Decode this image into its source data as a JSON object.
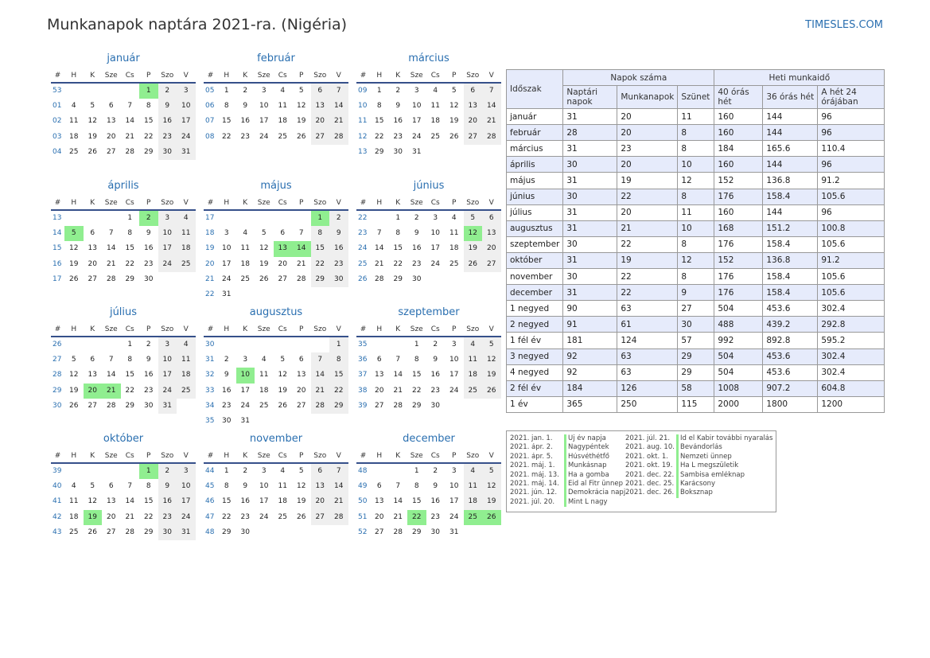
{
  "header": {
    "title": "Munkanapok naptára 2021-ra. (Nigéria)",
    "site": "TIMESLES.COM"
  },
  "day_headers": [
    "#",
    "H",
    "K",
    "Sze",
    "Cs",
    "P",
    "Szo",
    "V"
  ],
  "months": [
    {
      "name": "január",
      "weeks": [
        {
          "wn": "53",
          "days": [
            "",
            "",
            "",
            "",
            "1",
            "2",
            "3"
          ]
        },
        {
          "wn": "01",
          "days": [
            "4",
            "5",
            "6",
            "7",
            "8",
            "9",
            "10"
          ]
        },
        {
          "wn": "02",
          "days": [
            "11",
            "12",
            "13",
            "14",
            "15",
            "16",
            "17"
          ]
        },
        {
          "wn": "03",
          "days": [
            "18",
            "19",
            "20",
            "21",
            "22",
            "23",
            "24"
          ]
        },
        {
          "wn": "04",
          "days": [
            "25",
            "26",
            "27",
            "28",
            "29",
            "30",
            "31"
          ]
        }
      ],
      "holidays": [
        "1"
      ]
    },
    {
      "name": "február",
      "weeks": [
        {
          "wn": "05",
          "days": [
            "1",
            "2",
            "3",
            "4",
            "5",
            "6",
            "7"
          ]
        },
        {
          "wn": "06",
          "days": [
            "8",
            "9",
            "10",
            "11",
            "12",
            "13",
            "14"
          ]
        },
        {
          "wn": "07",
          "days": [
            "15",
            "16",
            "17",
            "18",
            "19",
            "20",
            "21"
          ]
        },
        {
          "wn": "08",
          "days": [
            "22",
            "23",
            "24",
            "25",
            "26",
            "27",
            "28"
          ]
        }
      ],
      "holidays": []
    },
    {
      "name": "március",
      "weeks": [
        {
          "wn": "09",
          "days": [
            "1",
            "2",
            "3",
            "4",
            "5",
            "6",
            "7"
          ]
        },
        {
          "wn": "10",
          "days": [
            "8",
            "9",
            "10",
            "11",
            "12",
            "13",
            "14"
          ]
        },
        {
          "wn": "11",
          "days": [
            "15",
            "16",
            "17",
            "18",
            "19",
            "20",
            "21"
          ]
        },
        {
          "wn": "12",
          "days": [
            "22",
            "23",
            "24",
            "25",
            "26",
            "27",
            "28"
          ]
        },
        {
          "wn": "13",
          "days": [
            "29",
            "30",
            "31",
            "",
            "",
            "",
            ""
          ]
        }
      ],
      "holidays": []
    },
    {
      "name": "április",
      "weeks": [
        {
          "wn": "13",
          "days": [
            "",
            "",
            "",
            "1",
            "2",
            "3",
            "4"
          ]
        },
        {
          "wn": "14",
          "days": [
            "5",
            "6",
            "7",
            "8",
            "9",
            "10",
            "11"
          ]
        },
        {
          "wn": "15",
          "days": [
            "12",
            "13",
            "14",
            "15",
            "16",
            "17",
            "18"
          ]
        },
        {
          "wn": "16",
          "days": [
            "19",
            "20",
            "21",
            "22",
            "23",
            "24",
            "25"
          ]
        },
        {
          "wn": "17",
          "days": [
            "26",
            "27",
            "28",
            "29",
            "30",
            "",
            ""
          ]
        }
      ],
      "holidays": [
        "2",
        "5"
      ]
    },
    {
      "name": "május",
      "weeks": [
        {
          "wn": "17",
          "days": [
            "",
            "",
            "",
            "",
            "",
            "1",
            "2"
          ]
        },
        {
          "wn": "18",
          "days": [
            "3",
            "4",
            "5",
            "6",
            "7",
            "8",
            "9"
          ]
        },
        {
          "wn": "19",
          "days": [
            "10",
            "11",
            "12",
            "13",
            "14",
            "15",
            "16"
          ]
        },
        {
          "wn": "20",
          "days": [
            "17",
            "18",
            "19",
            "20",
            "21",
            "22",
            "23"
          ]
        },
        {
          "wn": "21",
          "days": [
            "24",
            "25",
            "26",
            "27",
            "28",
            "29",
            "30"
          ]
        },
        {
          "wn": "22",
          "days": [
            "31",
            "",
            "",
            "",
            "",
            "",
            ""
          ]
        }
      ],
      "holidays": [
        "1",
        "13",
        "14"
      ]
    },
    {
      "name": "június",
      "weeks": [
        {
          "wn": "22",
          "days": [
            "",
            "1",
            "2",
            "3",
            "4",
            "5",
            "6"
          ]
        },
        {
          "wn": "23",
          "days": [
            "7",
            "8",
            "9",
            "10",
            "11",
            "12",
            "13"
          ]
        },
        {
          "wn": "24",
          "days": [
            "14",
            "15",
            "16",
            "17",
            "18",
            "19",
            "20"
          ]
        },
        {
          "wn": "25",
          "days": [
            "21",
            "22",
            "23",
            "24",
            "25",
            "26",
            "27"
          ]
        },
        {
          "wn": "26",
          "days": [
            "28",
            "29",
            "30",
            "",
            "",
            "",
            ""
          ]
        }
      ],
      "holidays": [
        "12"
      ]
    },
    {
      "name": "július",
      "weeks": [
        {
          "wn": "26",
          "days": [
            "",
            "",
            "",
            "1",
            "2",
            "3",
            "4"
          ]
        },
        {
          "wn": "27",
          "days": [
            "5",
            "6",
            "7",
            "8",
            "9",
            "10",
            "11"
          ]
        },
        {
          "wn": "28",
          "days": [
            "12",
            "13",
            "14",
            "15",
            "16",
            "17",
            "18"
          ]
        },
        {
          "wn": "29",
          "days": [
            "19",
            "20",
            "21",
            "22",
            "23",
            "24",
            "25"
          ]
        },
        {
          "wn": "30",
          "days": [
            "26",
            "27",
            "28",
            "29",
            "30",
            "31",
            ""
          ]
        }
      ],
      "holidays": [
        "20",
        "21"
      ]
    },
    {
      "name": "augusztus",
      "weeks": [
        {
          "wn": "30",
          "days": [
            "",
            "",
            "",
            "",
            "",
            "",
            "1"
          ]
        },
        {
          "wn": "31",
          "days": [
            "2",
            "3",
            "4",
            "5",
            "6",
            "7",
            "8"
          ]
        },
        {
          "wn": "32",
          "days": [
            "9",
            "10",
            "11",
            "12",
            "13",
            "14",
            "15"
          ]
        },
        {
          "wn": "33",
          "days": [
            "16",
            "17",
            "18",
            "19",
            "20",
            "21",
            "22"
          ]
        },
        {
          "wn": "34",
          "days": [
            "23",
            "24",
            "25",
            "26",
            "27",
            "28",
            "29"
          ]
        },
        {
          "wn": "35",
          "days": [
            "30",
            "31",
            "",
            "",
            "",
            "",
            ""
          ]
        }
      ],
      "holidays": [
        "10"
      ]
    },
    {
      "name": "szeptember",
      "weeks": [
        {
          "wn": "35",
          "days": [
            "",
            "",
            "1",
            "2",
            "3",
            "4",
            "5"
          ]
        },
        {
          "wn": "36",
          "days": [
            "6",
            "7",
            "8",
            "9",
            "10",
            "11",
            "12"
          ]
        },
        {
          "wn": "37",
          "days": [
            "13",
            "14",
            "15",
            "16",
            "17",
            "18",
            "19"
          ]
        },
        {
          "wn": "38",
          "days": [
            "20",
            "21",
            "22",
            "23",
            "24",
            "25",
            "26"
          ]
        },
        {
          "wn": "39",
          "days": [
            "27",
            "28",
            "29",
            "30",
            "",
            "",
            ""
          ]
        }
      ],
      "holidays": []
    },
    {
      "name": "október",
      "weeks": [
        {
          "wn": "39",
          "days": [
            "",
            "",
            "",
            "",
            "1",
            "2",
            "3"
          ]
        },
        {
          "wn": "40",
          "days": [
            "4",
            "5",
            "6",
            "7",
            "8",
            "9",
            "10"
          ]
        },
        {
          "wn": "41",
          "days": [
            "11",
            "12",
            "13",
            "14",
            "15",
            "16",
            "17"
          ]
        },
        {
          "wn": "42",
          "days": [
            "18",
            "19",
            "20",
            "21",
            "22",
            "23",
            "24"
          ]
        },
        {
          "wn": "43",
          "days": [
            "25",
            "26",
            "27",
            "28",
            "29",
            "30",
            "31"
          ]
        }
      ],
      "holidays": [
        "1",
        "19"
      ]
    },
    {
      "name": "november",
      "weeks": [
        {
          "wn": "44",
          "days": [
            "1",
            "2",
            "3",
            "4",
            "5",
            "6",
            "7"
          ]
        },
        {
          "wn": "45",
          "days": [
            "8",
            "9",
            "10",
            "11",
            "12",
            "13",
            "14"
          ]
        },
        {
          "wn": "46",
          "days": [
            "15",
            "16",
            "17",
            "18",
            "19",
            "20",
            "21"
          ]
        },
        {
          "wn": "47",
          "days": [
            "22",
            "23",
            "24",
            "25",
            "26",
            "27",
            "28"
          ]
        },
        {
          "wn": "48",
          "days": [
            "29",
            "30",
            "",
            "",
            "",
            "",
            ""
          ]
        }
      ],
      "holidays": []
    },
    {
      "name": "december",
      "weeks": [
        {
          "wn": "48",
          "days": [
            "",
            "",
            "1",
            "2",
            "3",
            "4",
            "5"
          ]
        },
        {
          "wn": "49",
          "days": [
            "6",
            "7",
            "8",
            "9",
            "10",
            "11",
            "12"
          ]
        },
        {
          "wn": "50",
          "days": [
            "13",
            "14",
            "15",
            "16",
            "17",
            "18",
            "19"
          ]
        },
        {
          "wn": "51",
          "days": [
            "20",
            "21",
            "22",
            "23",
            "24",
            "25",
            "26"
          ]
        },
        {
          "wn": "52",
          "days": [
            "27",
            "28",
            "29",
            "30",
            "31",
            "",
            ""
          ]
        }
      ],
      "holidays": [
        "22",
        "25",
        "26"
      ]
    }
  ],
  "stats": {
    "period_label": "Időszak",
    "group_days": "Napok száma",
    "group_hours": "Heti munkaidő",
    "col_calendar": "Naptári napok",
    "col_work": "Munkanapok",
    "col_holiday": "Szünet",
    "col_40": "40 órás hét",
    "col_36": "36 órás hét",
    "col_24": "A hét 24 órájában",
    "rows": [
      [
        "január",
        "31",
        "20",
        "11",
        "160",
        "144",
        "96"
      ],
      [
        "február",
        "28",
        "20",
        "8",
        "160",
        "144",
        "96"
      ],
      [
        "március",
        "31",
        "23",
        "8",
        "184",
        "165.6",
        "110.4"
      ],
      [
        "április",
        "30",
        "20",
        "10",
        "160",
        "144",
        "96"
      ],
      [
        "május",
        "31",
        "19",
        "12",
        "152",
        "136.8",
        "91.2"
      ],
      [
        "június",
        "30",
        "22",
        "8",
        "176",
        "158.4",
        "105.6"
      ],
      [
        "július",
        "31",
        "20",
        "11",
        "160",
        "144",
        "96"
      ],
      [
        "augusztus",
        "31",
        "21",
        "10",
        "168",
        "151.2",
        "100.8"
      ],
      [
        "szeptember",
        "30",
        "22",
        "8",
        "176",
        "158.4",
        "105.6"
      ],
      [
        "október",
        "31",
        "19",
        "12",
        "152",
        "136.8",
        "91.2"
      ],
      [
        "november",
        "30",
        "22",
        "8",
        "176",
        "158.4",
        "105.6"
      ],
      [
        "december",
        "31",
        "22",
        "9",
        "176",
        "158.4",
        "105.6"
      ],
      [
        "1 negyed",
        "90",
        "63",
        "27",
        "504",
        "453.6",
        "302.4"
      ],
      [
        "2 negyed",
        "91",
        "61",
        "30",
        "488",
        "439.2",
        "292.8"
      ],
      [
        "1 fél év",
        "181",
        "124",
        "57",
        "992",
        "892.8",
        "595.2"
      ],
      [
        "3 negyed",
        "92",
        "63",
        "29",
        "504",
        "453.6",
        "302.4"
      ],
      [
        "4 negyed",
        "92",
        "63",
        "29",
        "504",
        "453.6",
        "302.4"
      ],
      [
        "2 fél év",
        "184",
        "126",
        "58",
        "1008",
        "907.2",
        "604.8"
      ],
      [
        "1 év",
        "365",
        "250",
        "115",
        "2000",
        "1800",
        "1200"
      ]
    ]
  },
  "holiday_list": [
    [
      "2021. jan. 1.",
      "Új év napja",
      "2021. júl. 21.",
      "Id el Kabir további nyaralás"
    ],
    [
      "2021. ápr. 2.",
      "Nagypéntek",
      "2021. aug. 10.",
      "Bevándorlás"
    ],
    [
      "2021. ápr. 5.",
      "Húsvéthétfő",
      "2021. okt. 1.",
      "Nemzeti ünnep"
    ],
    [
      "2021. máj. 1.",
      "Munkásnap",
      "2021. okt. 19.",
      "Ha L megszületik"
    ],
    [
      "2021. máj. 13.",
      "Ha a gomba",
      "2021. dec. 22.",
      "Sambisa emléknap"
    ],
    [
      "2021. máj. 14.",
      "Eid al Fitr ünnep",
      "2021. dec. 25.",
      "Karácsony"
    ],
    [
      "2021. jún. 12.",
      "Demokrácia napja",
      "2021. dec. 26.",
      "Boksznap"
    ],
    [
      "2021. júl. 20.",
      "Mint L nagy",
      "",
      ""
    ]
  ]
}
